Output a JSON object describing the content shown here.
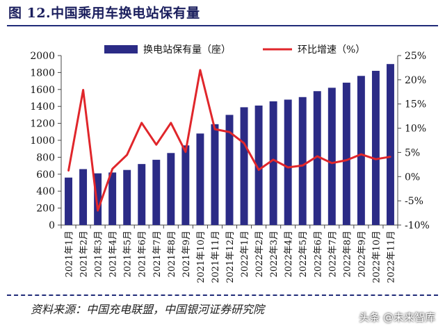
{
  "figure": {
    "title": "图 12.中国乘用车换电站保有量",
    "source": "资料来源：中国充电联盟，中国银河证券研究院",
    "watermark": "头条 @未来智库"
  },
  "colors": {
    "bar": "#2b2b86",
    "line": "#e0262b",
    "axis": "#444444",
    "title": "#1b1f5e"
  },
  "chart_data": {
    "type": "bar",
    "title": "中国乘用车换电站保有量",
    "categories": [
      "2021年1月",
      "2021年2月",
      "2021年3月",
      "2021年4月",
      "2021年5月",
      "2021年6月",
      "2021年7月",
      "2021年8月",
      "2021年9月",
      "2021年10月",
      "2021年11月",
      "2021年12月",
      "2022年1月",
      "2022年2月",
      "2022年3月",
      "2022年4月",
      "2022年5月",
      "2022年6月",
      "2022年7月",
      "2022年8月",
      "2022年9月",
      "2022年10月",
      "2022年11月"
    ],
    "series": [
      {
        "name": "换电站保有量（座）",
        "type": "bar",
        "axis": "left",
        "values": [
          560,
          660,
          610,
          620,
          650,
          720,
          770,
          850,
          940,
          1080,
          1190,
          1300,
          1390,
          1410,
          1460,
          1480,
          1510,
          1580,
          1620,
          1680,
          1760,
          1820,
          1900
        ]
      },
      {
        "name": "环比增速（%）",
        "type": "line",
        "axis": "right",
        "values": [
          1.2,
          17.9,
          -7.0,
          1.6,
          4.5,
          11.1,
          6.6,
          11.1,
          5.1,
          22.0,
          9.8,
          9.2,
          6.9,
          1.4,
          3.5,
          1.9,
          2.3,
          4.2,
          2.8,
          3.4,
          4.6,
          3.6,
          4.1
        ]
      }
    ],
    "yleft": {
      "min": 0,
      "max": 2000,
      "ticks": [
        0,
        200,
        400,
        600,
        800,
        1000,
        1200,
        1400,
        1600,
        1800,
        2000
      ]
    },
    "yright": {
      "min": -10,
      "max": 25,
      "ticks": [
        "-10%",
        "-5%",
        "0%",
        "5%",
        "10%",
        "15%",
        "20%",
        "25%"
      ]
    },
    "legend": {
      "placement": "top",
      "bar_label": "换电站保有量（座）",
      "line_label": "环比增速（%）"
    }
  }
}
